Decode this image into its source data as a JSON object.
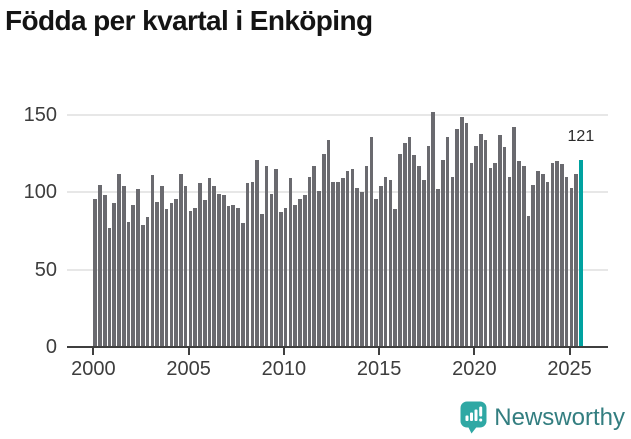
{
  "header": {
    "title": "Födda per kvartal i Enköping"
  },
  "branding": {
    "name": "Newsworthy",
    "icon": "newsworthy-speech-bubble-chart-icon",
    "icon_color": "#2fa8a4",
    "text_color": "#337e80"
  },
  "chart_data": {
    "type": "bar",
    "title": "Födda per kvartal i Enköping",
    "x_start": "2000 Q1",
    "x_end": "2025 Q3",
    "frequency": "quarterly",
    "values": [
      96,
      105,
      98,
      77,
      93,
      112,
      104,
      81,
      92,
      102,
      79,
      84,
      111,
      94,
      104,
      89,
      93,
      96,
      112,
      104,
      88,
      90,
      106,
      95,
      109,
      104,
      99,
      98,
      91,
      92,
      90,
      80,
      106,
      107,
      121,
      86,
      117,
      99,
      115,
      87,
      90,
      109,
      92,
      96,
      98,
      110,
      117,
      101,
      125,
      134,
      107,
      107,
      109,
      114,
      115,
      103,
      100,
      117,
      136,
      96,
      104,
      110,
      108,
      89,
      125,
      132,
      136,
      124,
      117,
      108,
      130,
      152,
      102,
      121,
      136,
      110,
      141,
      149,
      145,
      119,
      130,
      138,
      134,
      116,
      119,
      137,
      129,
      110,
      142,
      120,
      117,
      85,
      105,
      114,
      112,
      107,
      119,
      120,
      118,
      110,
      103,
      112,
      121
    ],
    "x_tick_labels": [
      "2000",
      "2005",
      "2010",
      "2015",
      "2020",
      "2025"
    ],
    "y_tick_labels": [
      "0",
      "50",
      "100",
      "150"
    ],
    "ylim": [
      0,
      160
    ],
    "grid": "horizontal",
    "legend": "none",
    "bar_color": "#6a6a6f",
    "axis_color": "#3f3f3f",
    "gridline_color": "#e7e7e7",
    "highlight": {
      "index": 102,
      "value": 121,
      "label": "121",
      "color": "#00a2a0"
    }
  }
}
